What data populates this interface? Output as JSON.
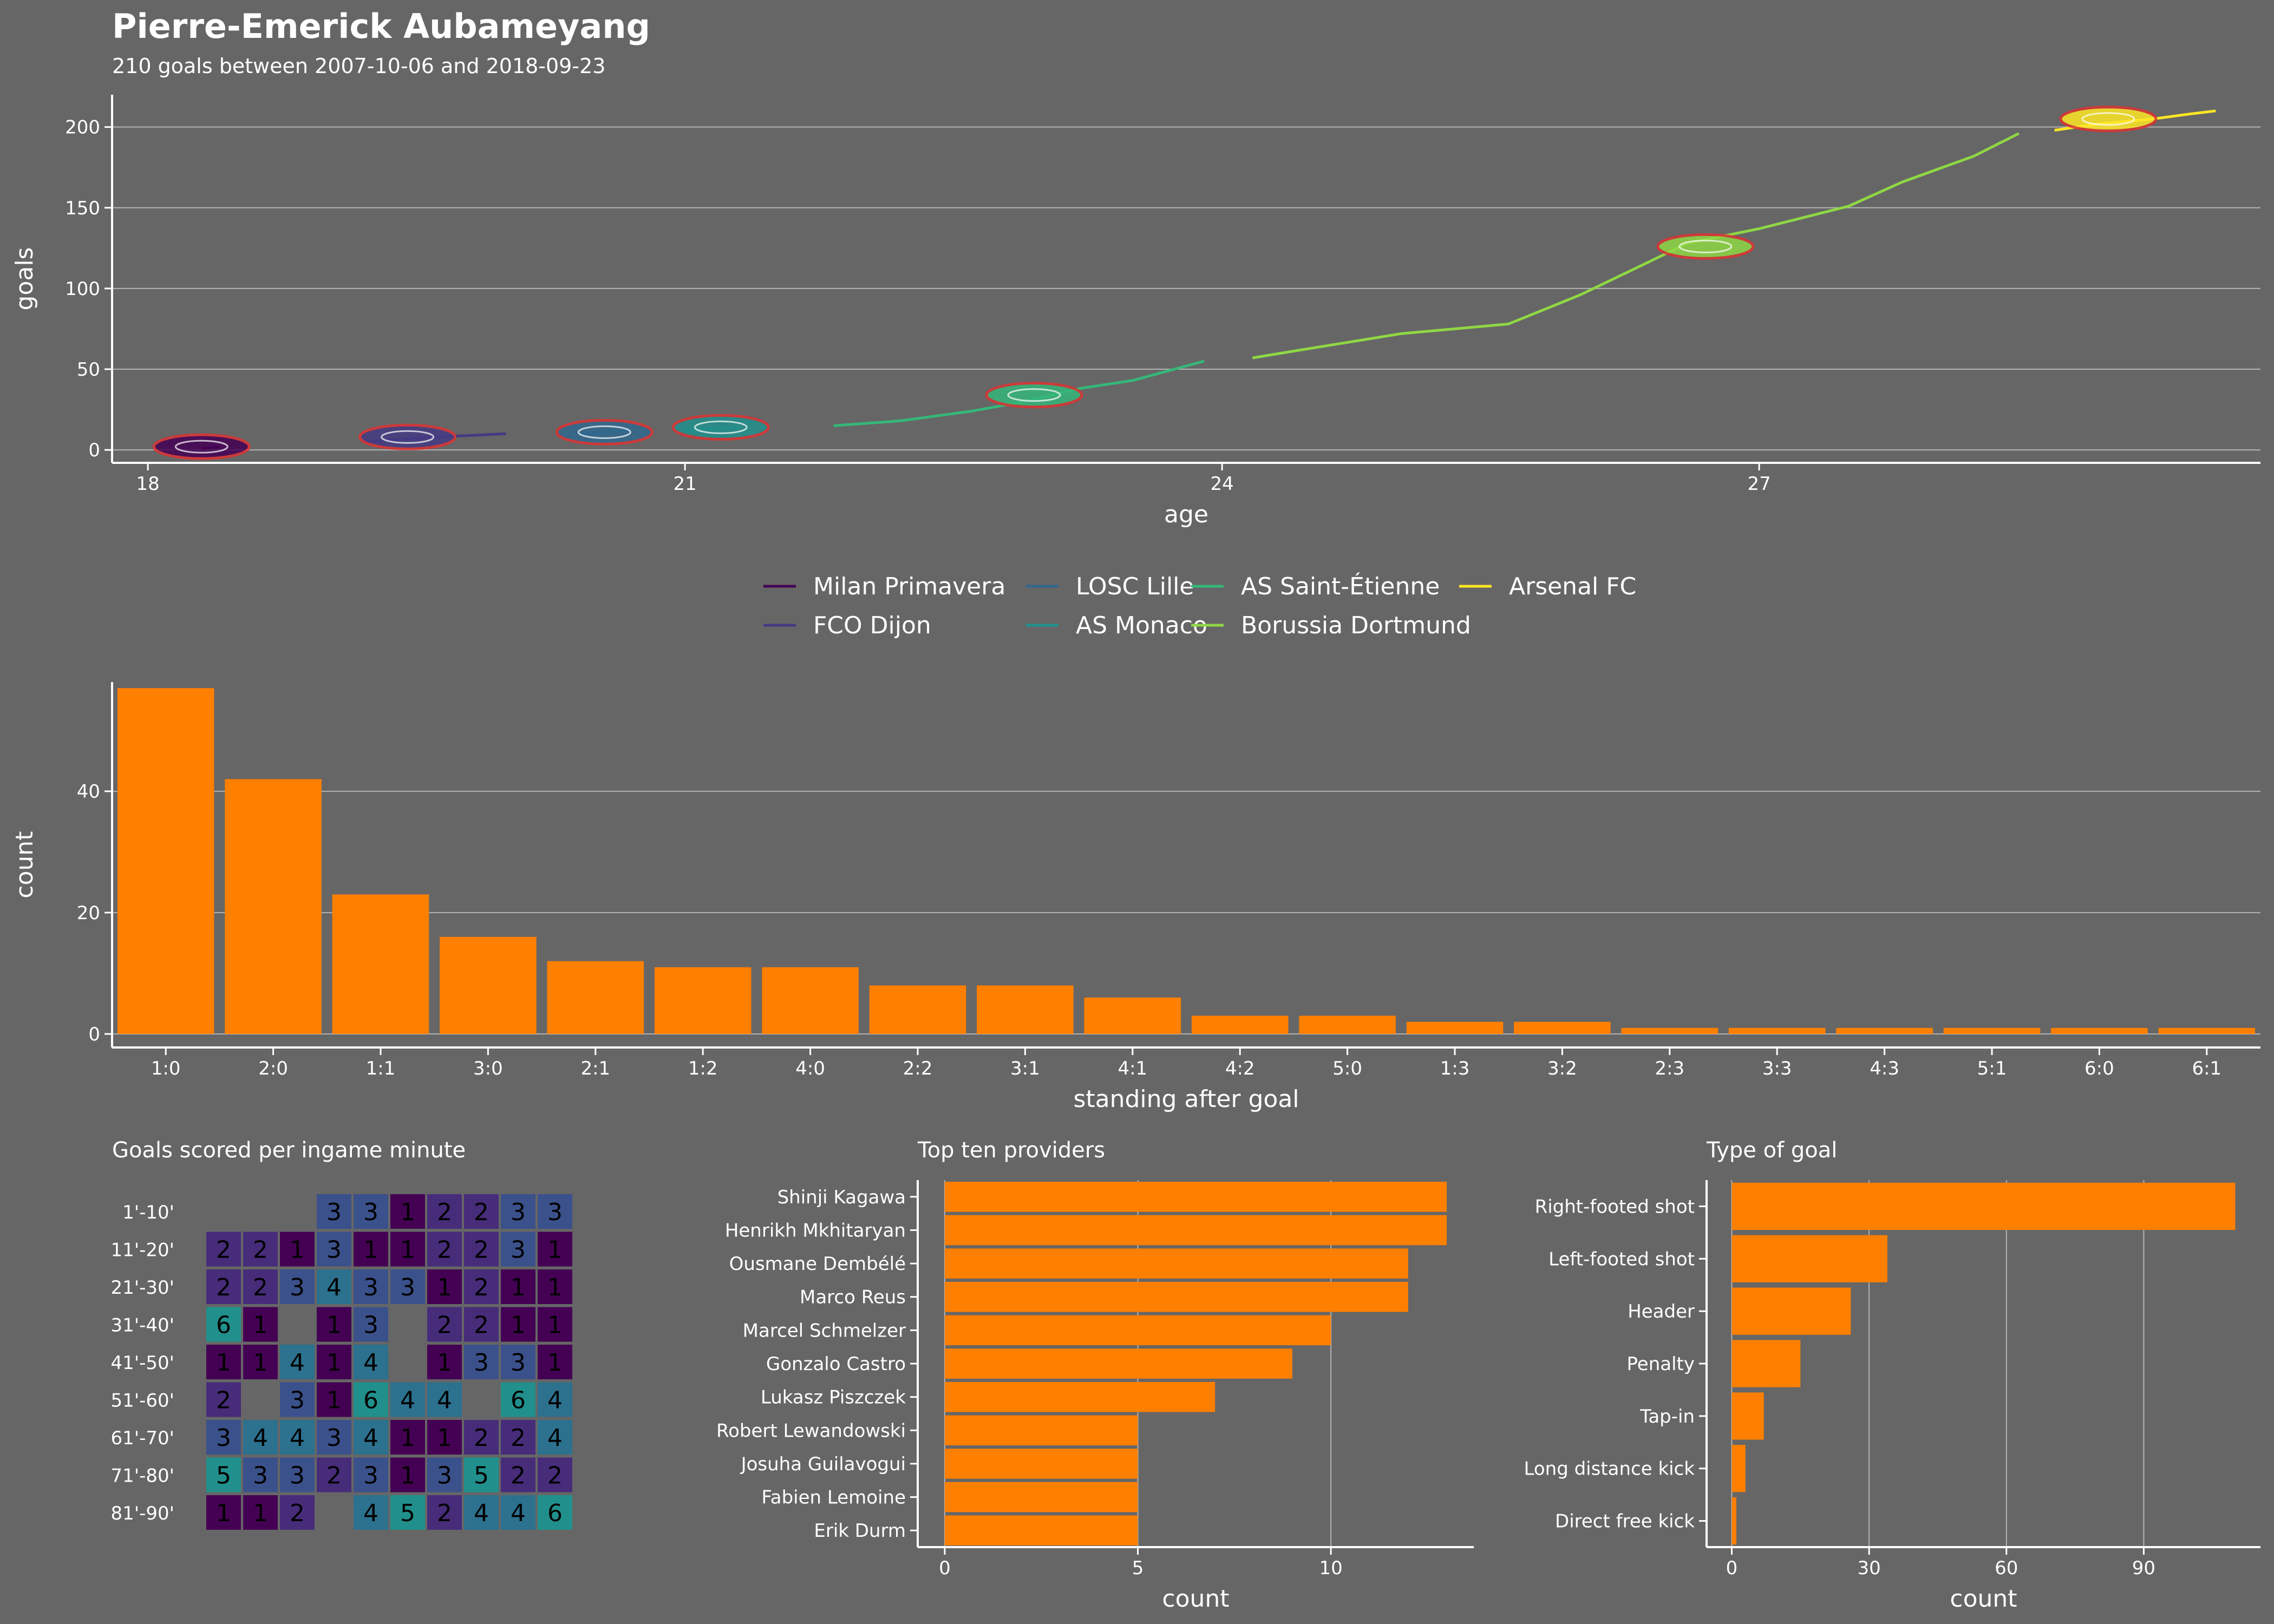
{
  "header": {
    "title": "Pierre-Emerick Aubameyang",
    "subtitle": "210 goals between 2007-10-06 and 2018-09-23"
  },
  "colors": {
    "background": "#666666",
    "bar": "#ff7f00",
    "grid": "#b3b3b3",
    "heat_low": "#440154",
    "heat_high": "#21908c"
  },
  "chart_data": [
    {
      "id": "goals_by_age",
      "type": "line",
      "title": "",
      "xlabel": "age",
      "ylabel": "goals",
      "xlim": [
        17.8,
        29.8
      ],
      "ylim": [
        -8,
        220
      ],
      "xticks": [
        18,
        21,
        24,
        27
      ],
      "yticks": [
        0,
        50,
        100,
        150,
        200
      ],
      "grid": "horizontal",
      "legend_position": "below",
      "series": [
        {
          "name": "Milan Primavera",
          "color": "#440154",
          "x": [
            18.3,
            18.4
          ],
          "y": [
            1,
            2
          ]
        },
        {
          "name": "FCO Dijon",
          "color": "#443a83",
          "x": [
            19.2,
            19.6,
            20.0
          ],
          "y": [
            5,
            8,
            10
          ]
        },
        {
          "name": "LOSC Lille",
          "color": "#31688e",
          "x": [
            20.4,
            20.7
          ],
          "y": [
            10,
            12
          ]
        },
        {
          "name": "AS Monaco",
          "color": "#21908c",
          "x": [
            21.0,
            21.3
          ],
          "y": [
            12,
            14
          ]
        },
        {
          "name": "AS Saint-Étienne",
          "color": "#35b779",
          "x": [
            21.83,
            22.2,
            22.6,
            22.9,
            23.2,
            23.5,
            23.7,
            23.9
          ],
          "y": [
            15,
            18,
            24,
            30,
            38,
            43,
            49,
            55
          ]
        },
        {
          "name": "Borussia Dortmund",
          "color": "#8fd744",
          "x": [
            24.17,
            24.5,
            25.0,
            25.6,
            26.0,
            26.3,
            26.6,
            27.0,
            27.5,
            27.8,
            28.2,
            28.45
          ],
          "y": [
            57,
            63,
            72,
            78,
            96,
            112,
            128,
            137,
            151,
            166,
            182,
            196
          ]
        },
        {
          "name": "Arsenal FC",
          "color": "#fde725",
          "x": [
            28.65,
            28.9,
            29.2,
            29.4,
            29.55
          ],
          "y": [
            198,
            202,
            205,
            208,
            210
          ]
        }
      ],
      "badges": [
        {
          "club": "Milan Primavera",
          "x": 18.3,
          "y": 2
        },
        {
          "club": "FCO Dijon",
          "x": 19.45,
          "y": 8
        },
        {
          "club": "LOSC Lille",
          "x": 20.55,
          "y": 11
        },
        {
          "club": "AS Monaco",
          "x": 21.2,
          "y": 14
        },
        {
          "club": "AS Saint-Étienne",
          "x": 22.95,
          "y": 34
        },
        {
          "club": "Borussia Dortmund",
          "x": 26.7,
          "y": 126
        },
        {
          "club": "Arsenal FC",
          "x": 28.95,
          "y": 205
        }
      ]
    },
    {
      "id": "standing_after_goal",
      "type": "bar",
      "title": "",
      "xlabel": "standing after goal",
      "ylabel": "count",
      "ylim": [
        0,
        58
      ],
      "yticks": [
        0,
        20,
        40
      ],
      "grid": "horizontal",
      "categories": [
        "1:0",
        "2:0",
        "1:1",
        "3:0",
        "2:1",
        "1:2",
        "4:0",
        "2:2",
        "3:1",
        "4:1",
        "4:2",
        "5:0",
        "1:3",
        "3:2",
        "2:3",
        "3:3",
        "4:3",
        "5:1",
        "6:0",
        "6:1"
      ],
      "values": [
        57,
        42,
        23,
        16,
        12,
        11,
        11,
        8,
        8,
        6,
        3,
        3,
        2,
        2,
        1,
        1,
        1,
        1,
        1,
        1
      ]
    },
    {
      "id": "goals_per_minute",
      "type": "heatmap",
      "title": "Goals scored per ingame minute",
      "rows": [
        "1'-10'",
        "11'-20'",
        "21'-30'",
        "31'-40'",
        "41'-50'",
        "51'-60'",
        "61'-70'",
        "71'-80'",
        "81'-90'"
      ],
      "columns": 10,
      "cells": [
        [
          null,
          null,
          null,
          3,
          3,
          1,
          2,
          2,
          3,
          3
        ],
        [
          2,
          2,
          1,
          3,
          1,
          1,
          2,
          2,
          3,
          1
        ],
        [
          2,
          2,
          3,
          4,
          3,
          3,
          1,
          2,
          1,
          1
        ],
        [
          6,
          1,
          null,
          1,
          3,
          null,
          2,
          2,
          1,
          1
        ],
        [
          1,
          1,
          4,
          1,
          4,
          null,
          1,
          3,
          3,
          1
        ],
        [
          2,
          null,
          3,
          1,
          6,
          4,
          4,
          null,
          6,
          4
        ],
        [
          3,
          4,
          4,
          3,
          4,
          1,
          1,
          2,
          2,
          4
        ],
        [
          5,
          3,
          3,
          2,
          3,
          1,
          3,
          5,
          2,
          2
        ],
        [
          1,
          1,
          2,
          null,
          4,
          5,
          2,
          4,
          4,
          6
        ]
      ]
    },
    {
      "id": "top_providers",
      "type": "bar",
      "orientation": "horizontal",
      "title": "Top ten providers",
      "xlabel": "count",
      "xlim": [
        -0.7,
        13.7
      ],
      "xticks": [
        0,
        5,
        10
      ],
      "grid": "vertical",
      "categories": [
        "Shinji Kagawa",
        "Henrikh Mkhitaryan",
        "Ousmane Dembélé",
        "Marco Reus",
        "Marcel Schmelzer",
        "Gonzalo Castro",
        "Lukasz Piszczek",
        "Robert Lewandowski",
        "Josuha Guilavogui",
        "Fabien Lemoine",
        "Erik Durm"
      ],
      "values": [
        13,
        13,
        12,
        12,
        10,
        9,
        7,
        5,
        5,
        5,
        5
      ]
    },
    {
      "id": "type_of_goal",
      "type": "bar",
      "orientation": "horizontal",
      "title": "Type of goal",
      "xlabel": "count",
      "xlim": [
        -5.5,
        115.5
      ],
      "xticks": [
        0,
        30,
        60,
        90
      ],
      "grid": "vertical",
      "categories": [
        "Right-footed shot",
        "Left-footed shot",
        "Header",
        "Penalty",
        "Tap-in",
        "Long distance kick",
        "Direct free kick"
      ],
      "values": [
        110,
        34,
        26,
        15,
        7,
        3,
        1
      ]
    }
  ]
}
